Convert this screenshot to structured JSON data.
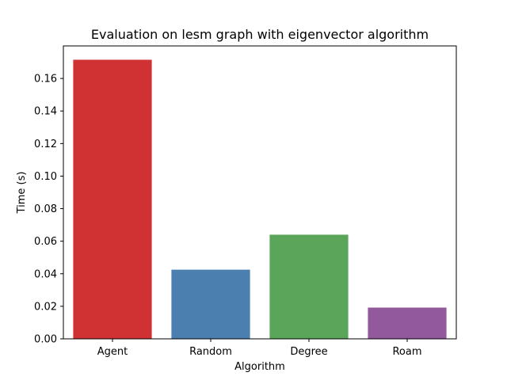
{
  "chart_data": {
    "type": "bar",
    "title": "Evaluation on lesm graph with eigenvector algorithm",
    "xlabel": "Algorithm",
    "ylabel": "Time (s)",
    "categories": [
      "Agent",
      "Random",
      "Degree",
      "Roam"
    ],
    "values": [
      0.1715,
      0.0425,
      0.064,
      0.0192
    ],
    "colors": [
      "#d03234",
      "#4a7fb0",
      "#5ba55a",
      "#925a9c"
    ],
    "ylim": [
      0,
      0.18
    ],
    "yticks": [
      0.0,
      0.02,
      0.04,
      0.06,
      0.08,
      0.1,
      0.12,
      0.14,
      0.16
    ],
    "ytick_labels": [
      "0.00",
      "0.02",
      "0.04",
      "0.06",
      "0.08",
      "0.10",
      "0.12",
      "0.14",
      "0.16"
    ],
    "grid": false,
    "legend": "none"
  }
}
